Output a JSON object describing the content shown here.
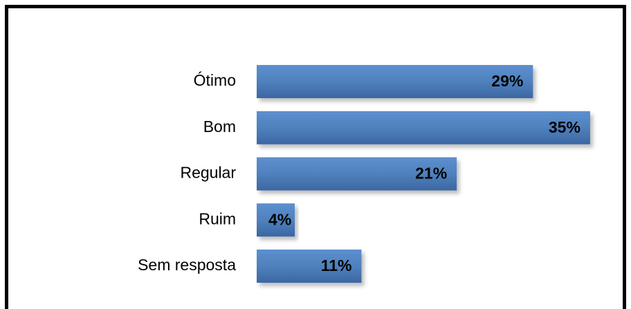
{
  "chart_data": {
    "type": "barh",
    "categories": [
      "Ótimo",
      "Bom",
      "Regular",
      "Ruim",
      "Sem resposta"
    ],
    "values": [
      29,
      35,
      21,
      4,
      11
    ],
    "value_labels": [
      "29%",
      "35%",
      "21%",
      "4%",
      "11%"
    ],
    "color": "#4f81bd"
  }
}
